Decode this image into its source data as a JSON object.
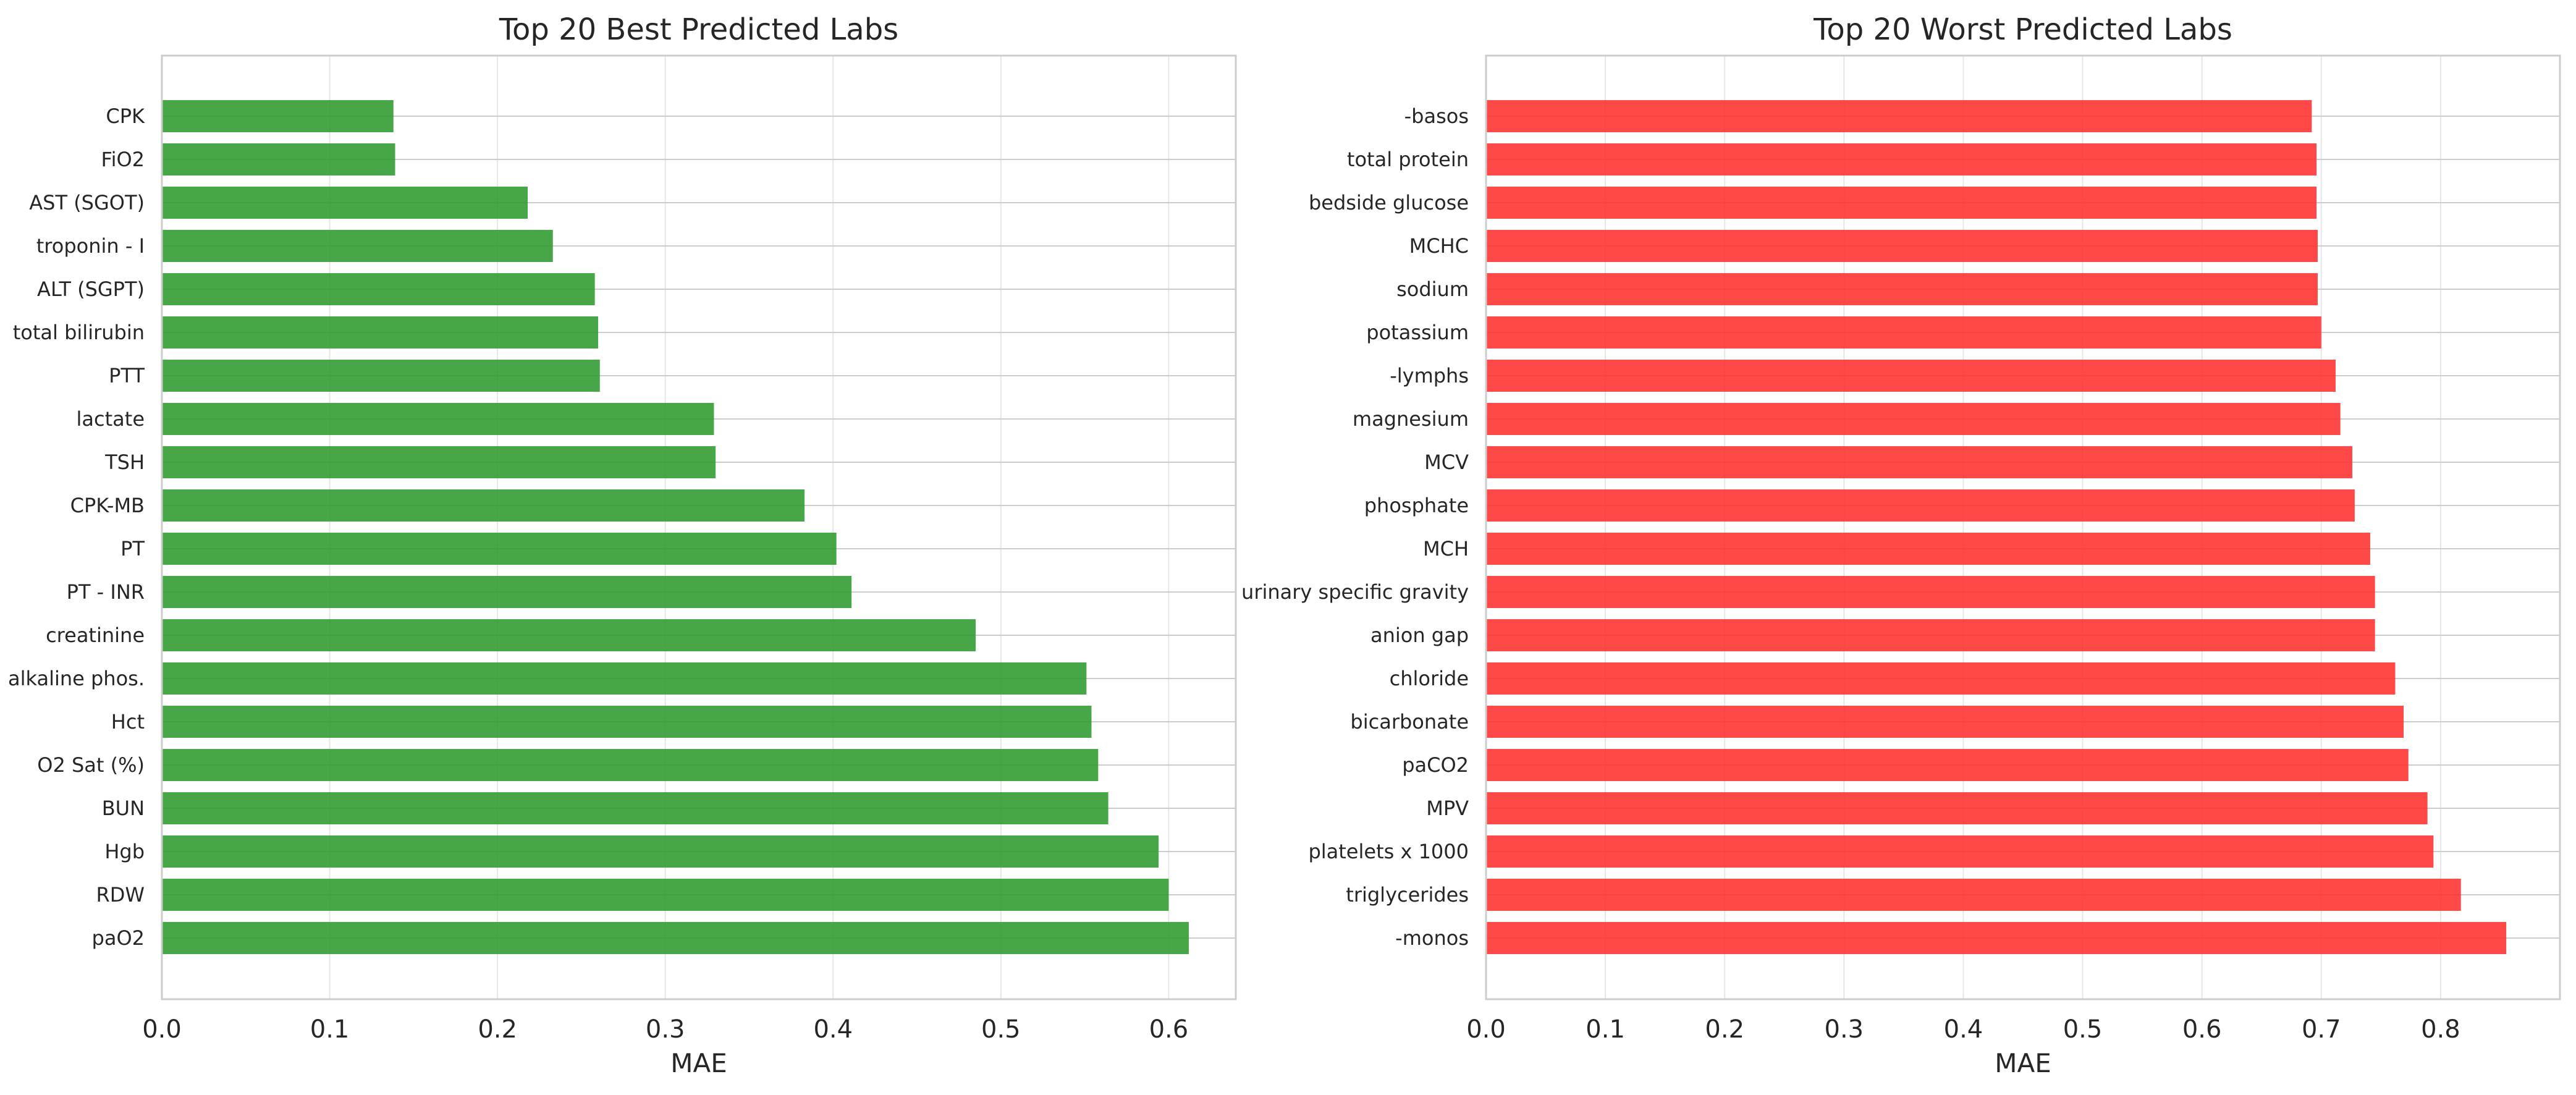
{
  "chart_data": [
    {
      "type": "bar",
      "orientation": "horizontal",
      "title": "Top 20 Best Predicted Labs",
      "xlabel": "MAE",
      "ylabel": "",
      "xlim": [
        0.0,
        0.64
      ],
      "xticks": [
        "0.0",
        "0.1",
        "0.2",
        "0.3",
        "0.4",
        "0.5",
        "0.6"
      ],
      "grid": true,
      "legend": "none",
      "color": "#2e9a2e",
      "categories": [
        "CPK",
        "FiO2",
        "AST (SGOT)",
        "troponin - I",
        "ALT (SGPT)",
        "total bilirubin",
        "PTT",
        "lactate",
        "TSH",
        "CPK-MB",
        "PT",
        "PT - INR",
        "creatinine",
        "alkaline phos.",
        "Hct",
        "O2 Sat (%)",
        "BUN",
        "Hgb",
        "RDW",
        "paO2"
      ],
      "values": [
        0.138,
        0.139,
        0.218,
        0.233,
        0.258,
        0.26,
        0.261,
        0.329,
        0.33,
        0.383,
        0.402,
        0.411,
        0.485,
        0.551,
        0.554,
        0.558,
        0.564,
        0.594,
        0.6,
        0.612
      ]
    },
    {
      "type": "bar",
      "orientation": "horizontal",
      "title": "Top 20 Worst Predicted Labs",
      "xlabel": "MAE",
      "ylabel": "",
      "xlim": [
        0.0,
        0.9
      ],
      "xticks": [
        "0.0",
        "0.1",
        "0.2",
        "0.3",
        "0.4",
        "0.5",
        "0.6",
        "0.7",
        "0.8"
      ],
      "grid": true,
      "legend": "none",
      "color": "#ff3030",
      "categories": [
        "-basos",
        "total protein",
        "bedside glucose",
        "MCHC",
        "sodium",
        "potassium",
        "-lymphs",
        "magnesium",
        "MCV",
        "phosphate",
        "MCH",
        "urinary specific gravity",
        "anion gap",
        "chloride",
        "bicarbonate",
        "paCO2",
        "MPV",
        "platelets x 1000",
        "triglycerides",
        "-monos"
      ],
      "values": [
        0.692,
        0.696,
        0.696,
        0.697,
        0.697,
        0.7,
        0.712,
        0.716,
        0.726,
        0.728,
        0.741,
        0.745,
        0.745,
        0.762,
        0.769,
        0.773,
        0.789,
        0.794,
        0.817,
        0.855
      ]
    }
  ]
}
